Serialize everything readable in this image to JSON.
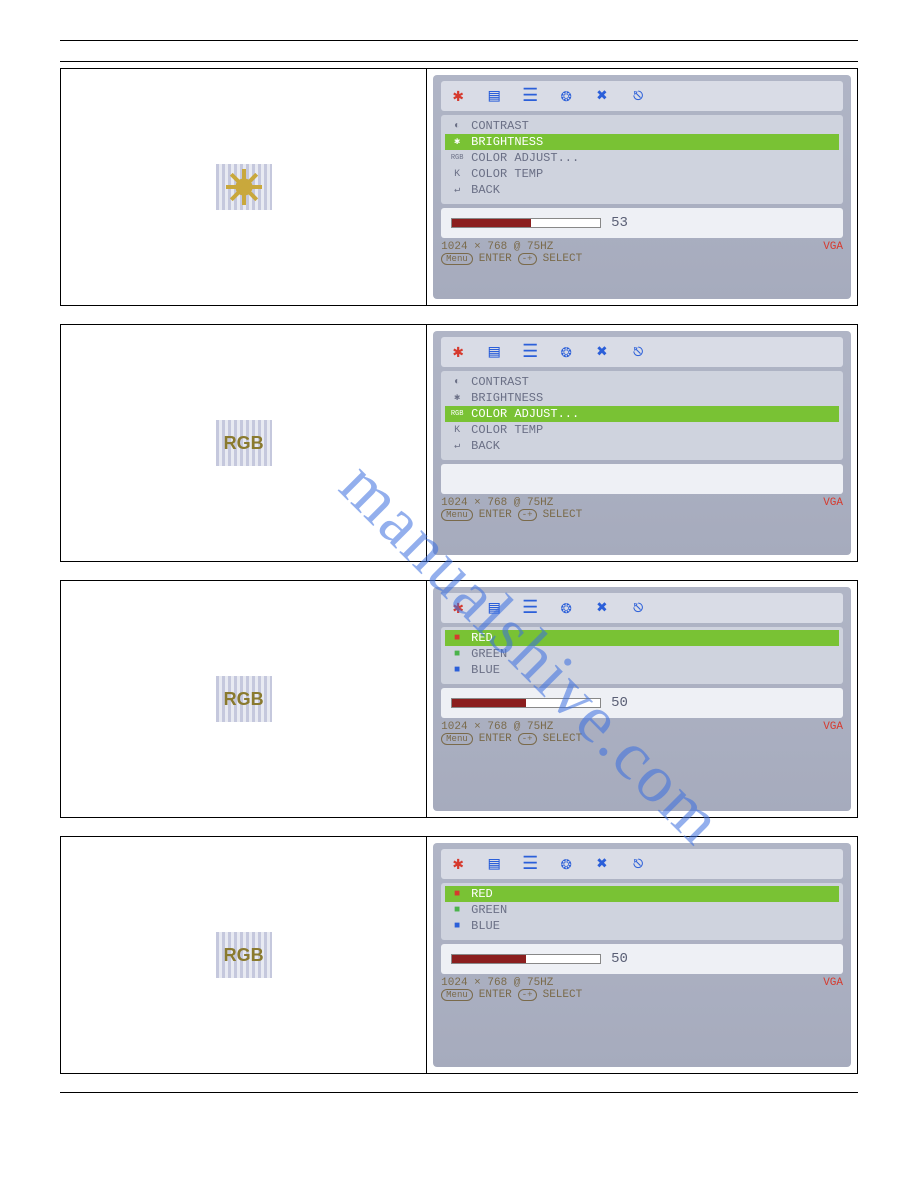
{
  "watermark": "manualshive.com",
  "osd_shared": {
    "tabs": [
      {
        "name": "brightness-tab",
        "glyph": "✱",
        "color": "#d63a2e"
      },
      {
        "name": "image-tab",
        "glyph": "▤",
        "color": "#2b5fd9"
      },
      {
        "name": "menu-tab",
        "glyph": "☰",
        "color": "#2b5fd9"
      },
      {
        "name": "globe-tab",
        "glyph": "❂",
        "color": "#2b5fd9"
      },
      {
        "name": "tools-tab",
        "glyph": "✖",
        "color": "#2b5fd9"
      },
      {
        "name": "exit-tab",
        "glyph": "⎋",
        "color": "#2b5fd9"
      }
    ],
    "resolution": "1024 × 768 @ 75HZ",
    "source": "VGA",
    "menu_label": "Menu",
    "enter_label": "ENTER",
    "select_label": "SELECT",
    "select_icon": "-+"
  },
  "rows": [
    {
      "left_icon_type": "sun",
      "left_label": "",
      "menu_items": [
        {
          "icon": "◐",
          "label": "CONTRAST",
          "selected": false
        },
        {
          "icon": "✱",
          "label": "BRIGHTNESS",
          "selected": true
        },
        {
          "icon": "RGB",
          "label": "COLOR ADJUST...",
          "selected": false,
          "small": true
        },
        {
          "icon": "K",
          "label": "COLOR TEMP",
          "selected": false
        },
        {
          "icon": "↵",
          "label": "BACK",
          "selected": false
        }
      ],
      "bar": {
        "percent": 53,
        "value": "53",
        "fill_color": "#8b1e1e"
      }
    },
    {
      "left_icon_type": "rgb",
      "left_label": "RGB",
      "menu_items": [
        {
          "icon": "◐",
          "label": "CONTRAST",
          "selected": false
        },
        {
          "icon": "✱",
          "label": "BRIGHTNESS",
          "selected": false
        },
        {
          "icon": "RGB",
          "label": "COLOR ADJUST...",
          "selected": true,
          "small": true
        },
        {
          "icon": "K",
          "label": "COLOR TEMP",
          "selected": false
        },
        {
          "icon": "↵",
          "label": "BACK",
          "selected": false
        }
      ],
      "bar": null
    },
    {
      "left_icon_type": "rgb",
      "left_label": "RGB",
      "menu_items": [
        {
          "icon": "■",
          "icon_color": "#d63a2e",
          "label": "RED",
          "selected": true
        },
        {
          "icon": "■",
          "icon_color": "#4bb34b",
          "label": "GREEN",
          "selected": false
        },
        {
          "icon": "■",
          "icon_color": "#2b5fd9",
          "label": "BLUE",
          "selected": false
        }
      ],
      "bar": {
        "percent": 50,
        "value": "50",
        "fill_color": "#8b1e1e"
      }
    },
    {
      "left_icon_type": "rgb",
      "left_label": "RGB",
      "menu_items": [
        {
          "icon": "■",
          "icon_color": "#d63a2e",
          "label": "RED",
          "selected": true
        },
        {
          "icon": "■",
          "icon_color": "#4bb34b",
          "label": "GREEN",
          "selected": false
        },
        {
          "icon": "■",
          "icon_color": "#2b5fd9",
          "label": "BLUE",
          "selected": false
        }
      ],
      "bar": {
        "percent": 50,
        "value": "50",
        "fill_color": "#8b1e1e"
      }
    }
  ]
}
